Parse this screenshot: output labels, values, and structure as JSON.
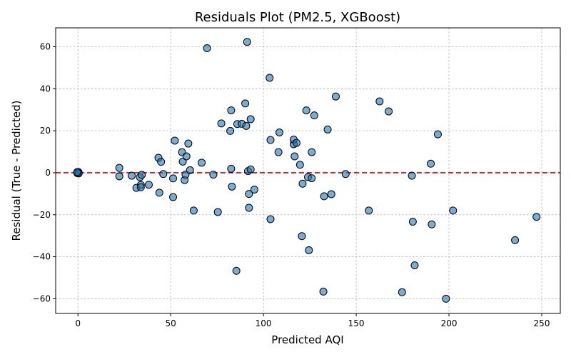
{
  "chart_data": {
    "type": "scatter",
    "title": "Residuals Plot (PM2.5, XGBoost)",
    "xlabel": "Predicted AQI",
    "ylabel": "Residual (True - Predicted)",
    "xlim": [
      -12,
      260
    ],
    "ylim": [
      -67,
      69
    ],
    "xticks": [
      0,
      50,
      100,
      150,
      200,
      250
    ],
    "yticks": [
      -60,
      -40,
      -20,
      0,
      20,
      40,
      60
    ],
    "xtick_labels": [
      "0",
      "50",
      "100",
      "150",
      "200",
      "250"
    ],
    "ytick_labels": [
      "−60",
      "−40",
      "−20",
      "0",
      "20",
      "40",
      "60"
    ],
    "grid": true,
    "reference_line": {
      "y": 0,
      "style": "dashed",
      "color": "#e00000"
    },
    "point_color": "#1f77b4",
    "points": [
      [
        0,
        0
      ],
      [
        0,
        0
      ],
      [
        0,
        0
      ],
      [
        0,
        0
      ],
      [
        0,
        0
      ],
      [
        0,
        0
      ],
      [
        0,
        0
      ],
      [
        0,
        0
      ],
      [
        0,
        0
      ],
      [
        0,
        0
      ],
      [
        0,
        0
      ],
      [
        0,
        0
      ],
      [
        0.3,
        0.3
      ],
      [
        -0.3,
        -0.2
      ],
      [
        0.4,
        -0.3
      ],
      [
        -0.4,
        0.3
      ],
      [
        22.3,
        2.3
      ],
      [
        22.3,
        -1.7
      ],
      [
        29,
        -1.4
      ],
      [
        31.5,
        -7.2
      ],
      [
        33.4,
        -2.1
      ],
      [
        34.4,
        -1.0
      ],
      [
        33.9,
        -5.8
      ],
      [
        33.9,
        -6.9
      ],
      [
        38.2,
        -5.7
      ],
      [
        43.4,
        7.1
      ],
      [
        44.8,
        5.2
      ],
      [
        43.9,
        -9.5
      ],
      [
        46.0,
        -0.6
      ],
      [
        51.3,
        -2.7
      ],
      [
        51.3,
        -11.6
      ],
      [
        52.2,
        15.3
      ],
      [
        56.1,
        9.8
      ],
      [
        56.5,
        5.3
      ],
      [
        57.5,
        -3.5
      ],
      [
        58.0,
        -0.9
      ],
      [
        58.5,
        7.8
      ],
      [
        59.5,
        13.9
      ],
      [
        60.4,
        1.2
      ],
      [
        62.4,
        -18.0
      ],
      [
        66.7,
        4.8
      ],
      [
        69.6,
        59.3
      ],
      [
        73.0,
        -0.9
      ],
      [
        75.4,
        -18.7
      ],
      [
        77.3,
        23.5
      ],
      [
        82.1,
        19.9
      ],
      [
        82.6,
        29.7
      ],
      [
        82.6,
        1.9
      ],
      [
        83.0,
        -6.6
      ],
      [
        85.4,
        -46.7
      ],
      [
        85.9,
        23.2
      ],
      [
        88.3,
        23.3
      ],
      [
        90.2,
        33.0
      ],
      [
        90.7,
        22.3
      ],
      [
        91.2,
        62.3
      ],
      [
        91.7,
        0.8
      ],
      [
        92.2,
        -10.1
      ],
      [
        92.2,
        -16.7
      ],
      [
        93.1,
        1.6
      ],
      [
        93.1,
        25.5
      ],
      [
        95.1,
        -8.0
      ],
      [
        103.3,
        45.2
      ],
      [
        103.8,
        15.6
      ],
      [
        103.8,
        -22.1
      ],
      [
        108.1,
        9.8
      ],
      [
        108.6,
        19.2
      ],
      [
        116.3,
        13.6
      ],
      [
        116.3,
        15.8
      ],
      [
        116.8,
        7.8
      ],
      [
        117.8,
        14.2
      ],
      [
        119.7,
        3.8
      ],
      [
        120.7,
        -30.2
      ],
      [
        121.1,
        -5.2
      ],
      [
        123.1,
        29.7
      ],
      [
        124.0,
        -2.1
      ],
      [
        124.5,
        -36.9
      ],
      [
        126.0,
        -2.6
      ],
      [
        126.0,
        9.8
      ],
      [
        127.4,
        27.3
      ],
      [
        132.3,
        -56.6
      ],
      [
        132.7,
        -11.2
      ],
      [
        134.6,
        20.6
      ],
      [
        136.6,
        -10.2
      ],
      [
        139.0,
        36.3
      ],
      [
        144.3,
        -0.6
      ],
      [
        156.8,
        -18.0
      ],
      [
        162.6,
        34.0
      ],
      [
        167.5,
        29.2
      ],
      [
        174.7,
        -56.9
      ],
      [
        180.0,
        -1.4
      ],
      [
        180.5,
        -23.3
      ],
      [
        181.5,
        -44.1
      ],
      [
        190.2,
        4.3
      ],
      [
        190.7,
        -24.6
      ],
      [
        194.0,
        18.3
      ],
      [
        198.4,
        -60.0
      ],
      [
        202.2,
        -18.0
      ],
      [
        235.6,
        -32.1
      ],
      [
        247.2,
        -21.0
      ]
    ]
  }
}
